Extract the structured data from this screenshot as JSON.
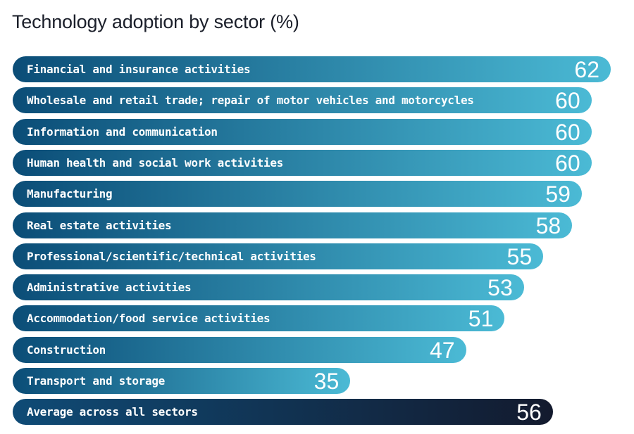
{
  "chart_data": {
    "type": "bar",
    "orientation": "horizontal",
    "title": "Technology adoption by sector (%)",
    "categories": [
      "Financial and insurance activities",
      "Wholesale and retail trade; repair of motor vehicles and motorcycles",
      "Information and communication",
      "Human health and social work activities",
      "Manufacturing",
      "Real estate activities",
      "Professional/scientific/technical activities",
      "Administrative activities",
      "Accommodation/food service activities",
      "Construction",
      "Transport and storage",
      "Average across all sectors"
    ],
    "values": [
      62,
      60,
      60,
      60,
      59,
      58,
      55,
      53,
      51,
      47,
      35,
      56
    ],
    "xlim": [
      0,
      62
    ],
    "grid": false,
    "colors": {
      "sector_gradient": [
        "#0b4d77",
        "#4bbad5"
      ],
      "average_gradient": [
        "#0f4b76",
        "#131a2e"
      ]
    }
  }
}
